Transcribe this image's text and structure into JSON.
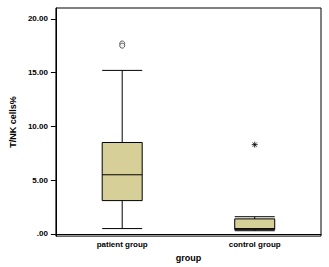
{
  "chart_data": {
    "type": "boxplot",
    "x_label": "group",
    "y_label": "T/NK cells%",
    "categories": [
      "patient group",
      "control group"
    ],
    "ylim": [
      -0.2,
      21
    ],
    "yticks": [
      {
        "value": 0,
        "label": ".00"
      },
      {
        "value": 5,
        "label": "5.00"
      },
      {
        "value": 10,
        "label": "10.00"
      },
      {
        "value": 15,
        "label": "15.00"
      },
      {
        "value": 20,
        "label": "20.00"
      }
    ],
    "grid": false,
    "series": [
      {
        "type": "boxplot",
        "color": "#d6cf97",
        "values": [
          [
            0.5,
            3.1,
            5.5,
            8.5,
            15.2
          ],
          [
            0.3,
            0.4,
            0.5,
            1.4,
            1.6
          ]
        ]
      },
      {
        "type": "scatter",
        "marker": "circle",
        "values": [
          [
            "patient group",
            17.7
          ],
          [
            "patient group",
            17.5
          ]
        ]
      },
      {
        "type": "scatter",
        "marker": "star",
        "values": [
          [
            "control group",
            8.3
          ]
        ]
      }
    ]
  }
}
